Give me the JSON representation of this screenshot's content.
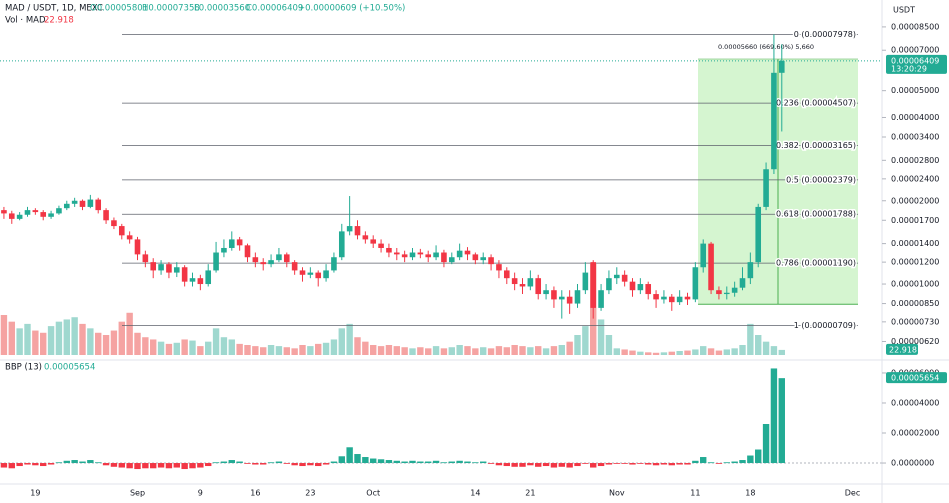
{
  "chart_data": [
    {
      "type": "candlestick",
      "title": "MAD / USDT, 1D, MEXC",
      "ohlc_labels": [
        "O0.00005801",
        "H0.00007358",
        "L0.00003560",
        "C0.00006409"
      ],
      "change_label": "+0.00000609 (+10.50%)",
      "y_axis_label": "USDT",
      "log_scale": true,
      "up_color": "#22ab94",
      "down_color": "#f23645",
      "categories": [
        null,
        null,
        null,
        null,
        "19",
        null,
        null,
        null,
        null,
        null,
        null,
        null,
        null,
        null,
        null,
        null,
        null,
        "Sep",
        null,
        null,
        null,
        null,
        null,
        null,
        null,
        "9",
        null,
        null,
        null,
        null,
        null,
        null,
        "16",
        null,
        null,
        null,
        null,
        null,
        null,
        "23",
        null,
        null,
        null,
        null,
        null,
        null,
        null,
        "Oct",
        null,
        null,
        null,
        null,
        null,
        null,
        null,
        null,
        null,
        null,
        null,
        null,
        "14",
        null,
        null,
        null,
        null,
        null,
        null,
        "21",
        null,
        null,
        null,
        null,
        null,
        null,
        null,
        null,
        null,
        null,
        "Nov",
        null,
        null,
        null,
        null,
        null,
        null,
        null,
        null,
        null,
        "11",
        null,
        null,
        null,
        null,
        null,
        null,
        "18",
        null,
        null,
        null,
        null,
        null,
        null,
        null,
        null,
        null,
        null,
        null,
        null,
        "Dec",
        null,
        null,
        null
      ],
      "open": [
        1.85e-05,
        1.8e-05,
        1.72e-05,
        1.78e-05,
        1.85e-05,
        1.82e-05,
        1.75e-05,
        1.8e-05,
        1.88e-05,
        1.95e-05,
        2e-05,
        1.9e-05,
        2.02e-05,
        1.85e-05,
        1.7e-05,
        1.62e-05,
        1.5e-05,
        1.45e-05,
        1.28e-05,
        1.2e-05,
        1.12e-05,
        1.18e-05,
        1.1e-05,
        1.15e-05,
        1.02e-05,
        1.05e-05,
        1e-05,
        1.12e-05,
        1.3e-05,
        1.35e-05,
        1.45e-05,
        1.38e-05,
        1.25e-05,
        1.2e-05,
        1.18e-05,
        1.22e-05,
        1.28e-05,
        1.2e-05,
        1.12e-05,
        1.08e-05,
        1.1e-05,
        1.05e-05,
        1.12e-05,
        1.25e-05,
        1.55e-05,
        1.62e-05,
        1.5e-05,
        1.45e-05,
        1.4e-05,
        1.35e-05,
        1.3e-05,
        1.28e-05,
        1.25e-05,
        1.3e-05,
        1.28e-05,
        1.25e-05,
        1.3e-05,
        1.2e-05,
        1.25e-05,
        1.32e-05,
        1.28e-05,
        1.22e-05,
        1.25e-05,
        1.18e-05,
        1.12e-05,
        1.05e-05,
        1e-05,
        9.8e-06,
        1.05e-05,
        9.2e-06,
        9.5e-06,
        8.8e-06,
        9e-06,
        8.5e-06,
        9.5e-06,
        1.2e-05,
        8.2e-06,
        9.5e-06,
        1.05e-05,
        1.08e-05,
        1.02e-05,
        9.5e-06,
        1e-05,
        9.2e-06,
        8.8e-06,
        9e-06,
        8.6e-06,
        9e-06,
        8.8e-06,
        1.15e-05,
        1.4e-05,
        9.5e-06,
        9.2e-06,
        9.3e-06,
        9.7e-06,
        1.05e-05,
        1.2e-05,
        1.9e-05,
        2.6e-05,
        5.801e-05,
        null,
        null,
        null,
        null,
        null,
        null,
        null,
        null,
        null,
        null,
        null,
        null
      ],
      "high": [
        1.9e-05,
        1.84e-05,
        1.82e-05,
        1.9e-05,
        1.88e-05,
        1.85e-05,
        1.84e-05,
        1.92e-05,
        2e-05,
        2.05e-05,
        2.02e-05,
        2.1e-05,
        2.05e-05,
        1.88e-05,
        1.74e-05,
        1.65e-05,
        1.55e-05,
        1.48e-05,
        1.32e-05,
        1.24e-05,
        1.22e-05,
        1.2e-05,
        1.2e-05,
        1.17e-05,
        1.1e-05,
        1.08e-05,
        1.18e-05,
        1.42e-05,
        1.45e-05,
        1.55e-05,
        1.48e-05,
        1.4e-05,
        1.3e-05,
        1.24e-05,
        1.28e-05,
        1.35e-05,
        1.3e-05,
        1.22e-05,
        1.15e-05,
        1.15e-05,
        1.12e-05,
        1.18e-05,
        1.3e-05,
        1.65e-05,
        2.08e-05,
        1.7e-05,
        1.55e-05,
        1.5e-05,
        1.45e-05,
        1.4e-05,
        1.35e-05,
        1.32e-05,
        1.35e-05,
        1.34e-05,
        1.32e-05,
        1.38e-05,
        1.33e-05,
        1.3e-05,
        1.4e-05,
        1.36e-05,
        1.3e-05,
        1.3e-05,
        1.28e-05,
        1.22e-05,
        1.15e-05,
        1.1e-05,
        1.05e-05,
        1.12e-05,
        1.08e-05,
        1e-05,
        9.8e-06,
        9.5e-06,
        9.5e-06,
        1e-05,
        1.2e-05,
        1.22e-05,
        1e-05,
        1.12e-05,
        1.15e-05,
        1.12e-05,
        1.05e-05,
        1.05e-05,
        1.02e-05,
        9.5e-06,
        9.5e-06,
        9.2e-06,
        9.5e-06,
        9.3e-06,
        1.2e-05,
        1.45e-05,
        1.42e-05,
        9.8e-06,
        9.8e-06,
        1.02e-05,
        1.15e-05,
        1.3e-05,
        1.95e-05,
        2.75e-05,
        7.978e-05,
        7.358e-05,
        null,
        null,
        null,
        null,
        null,
        null,
        null,
        null,
        null,
        null,
        null,
        null
      ],
      "low": [
        1.72e-05,
        1.65e-05,
        1.7e-05,
        1.75e-05,
        1.78e-05,
        1.7e-05,
        1.72e-05,
        1.78e-05,
        1.85e-05,
        1.9e-05,
        1.85e-05,
        1.88e-05,
        1.8e-05,
        1.65e-05,
        1.58e-05,
        1.45e-05,
        1.4e-05,
        1.22e-05,
        1.15e-05,
        1.05e-05,
        1.08e-05,
        1.05e-05,
        1.06e-05,
        9.8e-06,
        9.8e-06,
        9.5e-06,
        9.8e-06,
        1.1e-05,
        1.25e-05,
        1.32e-05,
        1.32e-05,
        1.2e-05,
        1.15e-05,
        1.12e-05,
        1.15e-05,
        1.2e-05,
        1.15e-05,
        1.08e-05,
        1.02e-05,
        1.05e-05,
        9.8e-06,
        1.02e-05,
        1.1e-05,
        1.22e-05,
        1.5e-05,
        1.45e-05,
        1.4e-05,
        1.35e-05,
        1.3e-05,
        1.25e-05,
        1.22e-05,
        1.2e-05,
        1.22e-05,
        1.24e-05,
        1.2e-05,
        1.22e-05,
        1.15e-05,
        1.18e-05,
        1.22e-05,
        1.22e-05,
        1.18e-05,
        1.18e-05,
        1.12e-05,
        1.05e-05,
        1e-05,
        9.5e-06,
        9.2e-06,
        9.5e-06,
        8.8e-06,
        8.8e-06,
        8.2e-06,
        7.5e-06,
        7.8e-06,
        8.2e-06,
        9.2e-06,
        7.5e-06,
        8e-06,
        9.2e-06,
        1e-05,
        9.8e-06,
        9e-06,
        9.2e-06,
        8.8e-06,
        8.2e-06,
        8.5e-06,
        8e-06,
        8.4e-06,
        8.4e-06,
        8.6e-06,
        1.1e-05,
        9.2e-06,
        8.8e-06,
        8.8e-06,
        9e-06,
        9.5e-06,
        1e-05,
        1.15e-05,
        1.85e-05,
        2.5e-05,
        3.56e-05,
        null,
        null,
        null,
        null,
        null,
        null,
        null,
        null,
        null,
        null,
        null,
        null
      ],
      "close": [
        1.8e-05,
        1.72e-05,
        1.78e-05,
        1.85e-05,
        1.82e-05,
        1.75e-05,
        1.8e-05,
        1.88e-05,
        1.95e-05,
        2e-05,
        1.9e-05,
        2.02e-05,
        1.85e-05,
        1.7e-05,
        1.62e-05,
        1.5e-05,
        1.45e-05,
        1.28e-05,
        1.2e-05,
        1.12e-05,
        1.18e-05,
        1.1e-05,
        1.15e-05,
        1.02e-05,
        1.05e-05,
        1e-05,
        1.12e-05,
        1.3e-05,
        1.35e-05,
        1.45e-05,
        1.38e-05,
        1.25e-05,
        1.2e-05,
        1.18e-05,
        1.22e-05,
        1.28e-05,
        1.2e-05,
        1.12e-05,
        1.08e-05,
        1.1e-05,
        1.05e-05,
        1.12e-05,
        1.25e-05,
        1.55e-05,
        1.62e-05,
        1.5e-05,
        1.45e-05,
        1.4e-05,
        1.35e-05,
        1.3e-05,
        1.28e-05,
        1.25e-05,
        1.3e-05,
        1.28e-05,
        1.25e-05,
        1.3e-05,
        1.2e-05,
        1.25e-05,
        1.32e-05,
        1.28e-05,
        1.22e-05,
        1.25e-05,
        1.18e-05,
        1.12e-05,
        1.05e-05,
        1e-05,
        9.8e-06,
        1.05e-05,
        9.2e-06,
        9.5e-06,
        8.8e-06,
        9e-06,
        8.5e-06,
        9.5e-06,
        1.1e-05,
        8.2e-06,
        9.5e-06,
        1.05e-05,
        1.08e-05,
        1.02e-05,
        9.5e-06,
        1e-05,
        9.2e-06,
        8.8e-06,
        9e-06,
        8.6e-06,
        9e-06,
        8.8e-06,
        1.15e-05,
        1.4e-05,
        9.5e-06,
        9.2e-06,
        9.3e-06,
        9.7e-06,
        1.05e-05,
        1.2e-05,
        1.9e-05,
        2.6e-05,
        5.801e-05,
        6.409e-05,
        null,
        null,
        null,
        null,
        null,
        null,
        null,
        null,
        null,
        null,
        null,
        null
      ],
      "ylim": [
        5.54e-06,
        0.000102
      ],
      "yticks": [
        {
          "value": 8.5e-05,
          "label": "0.00008500"
        },
        {
          "value": 7e-05,
          "label": "0.00007000"
        },
        {
          "value": 5e-05,
          "label": "0.00005000"
        },
        {
          "value": 4e-05,
          "label": "0.00004000"
        },
        {
          "value": 3.4e-05,
          "label": "0.00003400"
        },
        {
          "value": 2.8e-05,
          "label": "0.00002800"
        },
        {
          "value": 2.4e-05,
          "label": "0.00002400"
        },
        {
          "value": 2e-05,
          "label": "0.00002000"
        },
        {
          "value": 1.7e-05,
          "label": "0.00001700"
        },
        {
          "value": 1.4e-05,
          "label": "0.00001400"
        },
        {
          "value": 1.2e-05,
          "label": "0.00001200"
        },
        {
          "value": 1e-05,
          "label": "0.00001000"
        },
        {
          "value": 8.5e-06,
          "label": "0.00000850"
        },
        {
          "value": 7.3e-06,
          "label": "0.00000730"
        },
        {
          "value": 6.2e-06,
          "label": "0.00000620"
        }
      ],
      "last_price": {
        "value": 6.409e-05,
        "label": "0.00006409",
        "countdown": "13:20:29",
        "color": "#22ab94"
      },
      "fib": [
        {
          "value": 7.978e-05,
          "label": "0 (0.00007978)"
        },
        {
          "value": 4.507e-05,
          "label": "0.236 (0.00004507)"
        },
        {
          "value": 3.165e-05,
          "label": "0.382 (0.00003165)"
        },
        {
          "value": 2.379e-05,
          "label": "0.5 (0.00002379)"
        },
        {
          "value": 1.788e-05,
          "label": "0.618 (0.00001788)"
        },
        {
          "value": 1.19e-05,
          "label": "0.786 (0.00001190)"
        },
        {
          "value": 7.09e-06,
          "label": "1 (0.00000709)"
        }
      ],
      "fib_color": "#5d606b",
      "measure": {
        "label": "0.00005660 (669.60%) 5,660",
        "range": [
          8.453e-06,
          6.505e-05
        ],
        "color": "#d5f5d0",
        "border": "#4caf50"
      },
      "volume": {
        "title": "Vol · MAD",
        "last_label": "22.918",
        "ylim": [
          0,
          450
        ],
        "up_color": "#9fd8cf",
        "down_color": "#f5a3a2",
        "tag_color": "#22ab94",
        "values": [
          180,
          150,
          120,
          140,
          110,
          100,
          130,
          150,
          160,
          170,
          140,
          120,
          100,
          90,
          110,
          150,
          190,
          100,
          80,
          70,
          60,
          50,
          55,
          70,
          65,
          40,
          60,
          120,
          80,
          70,
          50,
          45,
          40,
          35,
          45,
          40,
          35,
          30,
          45,
          40,
          50,
          55,
          70,
          120,
          140,
          80,
          60,
          45,
          40,
          45,
          40,
          35,
          30,
          35,
          30,
          40,
          30,
          35,
          45,
          40,
          30,
          35,
          30,
          40,
          35,
          45,
          40,
          35,
          40,
          30,
          40,
          45,
          60,
          90,
          130,
          410,
          160,
          90,
          30,
          25,
          20,
          15,
          12,
          10,
          12,
          15,
          18,
          20,
          25,
          40,
          30,
          20,
          25,
          30,
          45,
          140,
          90,
          60,
          40,
          22.918,
          null,
          null,
          null,
          null,
          null,
          null,
          null,
          null,
          null,
          null,
          null,
          null
        ]
      }
    },
    {
      "type": "bar",
      "title": "BBP (13)",
      "value_label": "0.00005654",
      "up_color": "#22ab94",
      "down_color": "#f23645",
      "values": [
        -3e-06,
        -3.5e-06,
        -2e-06,
        -1e-06,
        -1.5e-06,
        -2e-06,
        -1e-06,
        5e-07,
        1.5e-06,
        2e-06,
        1e-06,
        2e-06,
        5e-07,
        -1.5e-06,
        -2.5e-06,
        -3e-06,
        -3.5e-06,
        -4e-06,
        -3.5e-06,
        -3.5e-06,
        -3e-06,
        -3.5e-06,
        -3e-06,
        -4e-06,
        -3.5e-06,
        -3e-06,
        -2e-06,
        5e-07,
        1e-06,
        2e-06,
        1e-06,
        -5e-07,
        -1e-06,
        -1e-06,
        5e-07,
        1e-06,
        -5e-07,
        -1.5e-06,
        -2e-06,
        -1.5e-06,
        -2e-06,
        -1e-06,
        1e-06,
        4.5e-06,
        1.05e-05,
        6e-06,
        4e-06,
        3e-06,
        2.5e-06,
        2e-06,
        1.5e-06,
        1e-06,
        1.5e-06,
        1e-06,
        1e-06,
        1.5e-06,
        5e-07,
        1e-06,
        1.5e-06,
        1e-06,
        5e-07,
        1e-06,
        -5e-07,
        -1.5e-06,
        -2e-06,
        -2.5e-06,
        -2.5e-06,
        -1.5e-06,
        -2.5e-06,
        -2e-06,
        -3e-06,
        -2.5e-06,
        -3e-06,
        -2e-06,
        -5e-07,
        -3e-06,
        -2e-06,
        -1e-06,
        -5e-07,
        -5e-07,
        -1e-06,
        -5e-07,
        -1e-06,
        -1.5e-06,
        -1e-06,
        -1.5e-06,
        -1e-06,
        -1e-06,
        1.5e-06,
        4e-06,
        5e-07,
        -5e-07,
        5e-07,
        1e-06,
        2e-06,
        5e-06,
        9e-06,
        2.6e-05,
        6.3e-05,
        5.654e-05,
        null,
        null,
        null,
        null,
        null,
        null,
        null,
        null,
        null,
        null,
        null,
        null
      ],
      "ylim": [
        -1.13e-05,
        6.53e-05
      ],
      "yticks": [
        {
          "value": 6e-05,
          "label": "0.00006000"
        },
        {
          "value": 4e-05,
          "label": "0.00004000"
        },
        {
          "value": 2e-05,
          "label": "0.00002000"
        },
        {
          "value": 0,
          "label": "0.0000000"
        }
      ]
    }
  ]
}
